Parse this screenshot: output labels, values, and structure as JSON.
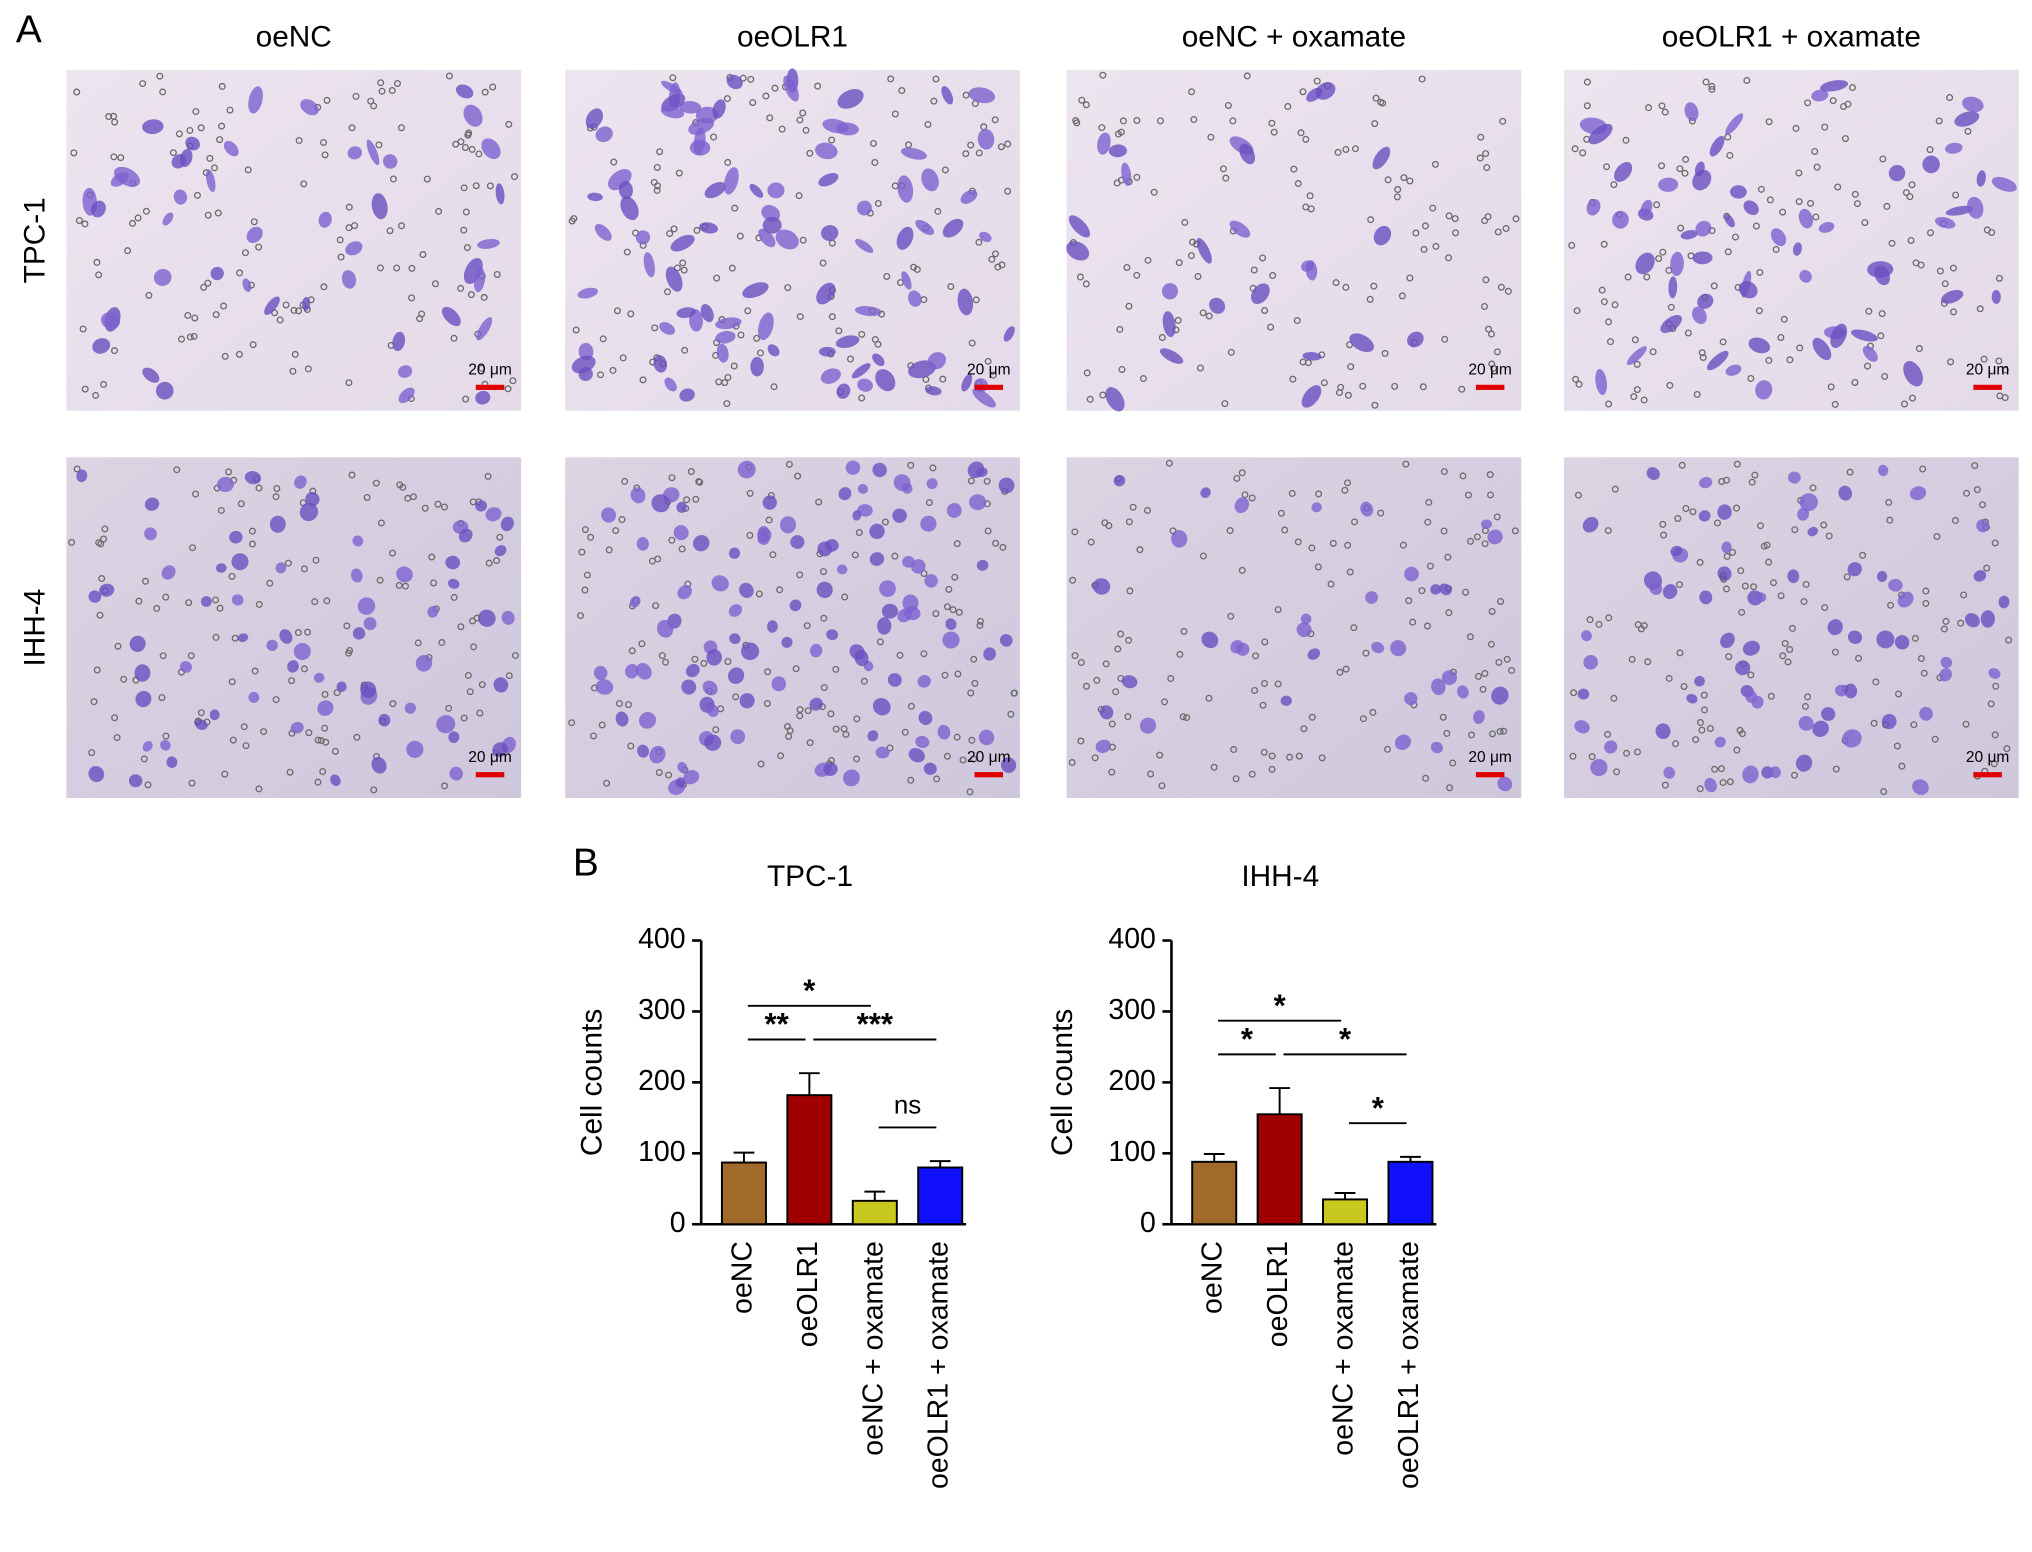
{
  "panel_a": {
    "label": "A",
    "columns": [
      "oeNC",
      "oeOLR1",
      "oeNC + oxamate",
      "oeOLR1 + oxamate"
    ],
    "rows": [
      "TPC-1",
      "IHH-4"
    ],
    "scale_bar": "20 μm"
  },
  "panel_b": {
    "label": "B"
  },
  "chart_data": [
    {
      "type": "bar",
      "title": "TPC-1",
      "ylabel": "Cell counts",
      "categories": [
        "oeNC",
        "oeOLR1",
        "oeNC + oxamate",
        "oeOLR1 + oxamate"
      ],
      "values": [
        87,
        182,
        33,
        80
      ],
      "errors": [
        14,
        31,
        13,
        9
      ],
      "colors": [
        "#a06a2a",
        "#a00000",
        "#c8c81e",
        "#1010ff"
      ],
      "ylim": [
        0,
        400
      ],
      "yticks": [
        0,
        100,
        200,
        300,
        400
      ],
      "annotations": [
        {
          "label": "ns",
          "from": 2,
          "to": 3
        },
        {
          "label": "**",
          "from": 0,
          "to": 1
        },
        {
          "label": "***",
          "from": 1,
          "to": 3
        },
        {
          "label": "*",
          "from": 0,
          "to": 2
        }
      ]
    },
    {
      "type": "bar",
      "title": "IHH-4",
      "ylabel": "Cell counts",
      "categories": [
        "oeNC",
        "oeOLR1",
        "oeNC + oxamate",
        "oeOLR1 + oxamate"
      ],
      "values": [
        88,
        155,
        35,
        88
      ],
      "errors": [
        11,
        37,
        9,
        7
      ],
      "colors": [
        "#a06a2a",
        "#a00000",
        "#c8c81e",
        "#1010ff"
      ],
      "ylim": [
        0,
        400
      ],
      "yticks": [
        0,
        100,
        200,
        300,
        400
      ],
      "annotations": [
        {
          "label": "*",
          "from": 2,
          "to": 3
        },
        {
          "label": "*",
          "from": 0,
          "to": 1
        },
        {
          "label": "*",
          "from": 1,
          "to": 3
        },
        {
          "label": "*",
          "from": 0,
          "to": 2
        }
      ]
    }
  ]
}
